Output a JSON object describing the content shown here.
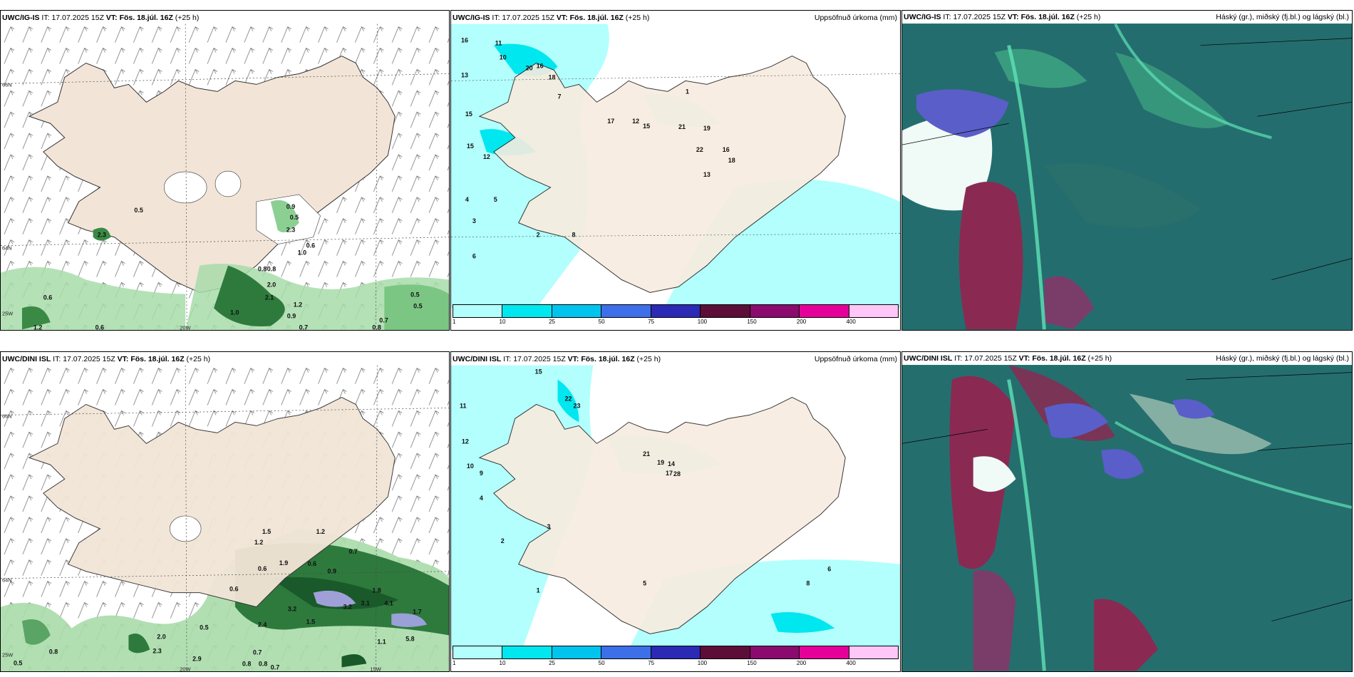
{
  "panels": {
    "tl": {
      "model": "UWC/IG-IS",
      "it_label": "IT:",
      "it": "17.07.2025 15Z",
      "vt": "VT: Fös. 18.júl. 16Z",
      "lead": "(+25 h)",
      "right": ""
    },
    "tm": {
      "model": "UWC/IG-IS",
      "it_label": "IT:",
      "it": "17.07.2025 15Z",
      "vt": "VT: Fös. 18.júl. 16Z",
      "lead": "(+25 h)",
      "right": "Uppsöfnuð úrkoma (mm)"
    },
    "tr": {
      "model": "UWC/IG-IS",
      "it_label": "IT:",
      "it": "17.07.2025 15Z",
      "vt": "VT: Fös. 18.júl. 16Z",
      "lead": "(+25 h)",
      "right": "Háský (gr.), miðský (fj.bl.) og lágský (bl.)"
    },
    "bl": {
      "model": "UWC/DINI ISL",
      "it_label": "IT:",
      "it": "17.07.2025 15Z",
      "vt": "VT: Fös. 18.júl. 16Z",
      "lead": "(+25 h)",
      "right": ""
    },
    "bm": {
      "model": "UWC/DINI ISL",
      "it_label": "IT:",
      "it": "17.07.2025 15Z",
      "vt": "VT: Fös. 18.júl. 16Z",
      "lead": "(+25 h)",
      "right": "Uppsöfnuð úrkoma (mm)"
    },
    "br": {
      "model": "UWC/DINI ISL",
      "it_label": "IT:",
      "it": "17.07.2025 15Z",
      "vt": "VT: Fös. 18.júl. 16Z",
      "lead": "(+25 h)",
      "right": "Háský (gr.), miðský (fj.bl.) og lágský (bl.)"
    }
  },
  "grid_labels": {
    "lat_66": "66N",
    "lat_64": "64N",
    "lon_25": "25W",
    "lon_20": "20W",
    "lon_15": "15W"
  },
  "colorbar": {
    "colors": [
      "#b2fffd",
      "#00e7f0",
      "#00c4ee",
      "#3d6fe8",
      "#2a2ab5",
      "#5c0d38",
      "#8a0a6e",
      "#e6009a",
      "#ffc7f7"
    ],
    "labels": [
      "1",
      "10",
      "25",
      "50",
      "75",
      "100",
      "150",
      "200",
      "400"
    ]
  },
  "top_rain_values": [
    "0.5",
    "0.9",
    "0.5",
    "2.3",
    "0.6",
    "1.0",
    "2.3",
    "0.8",
    "0.8",
    "2.0",
    "2.1",
    "1.2",
    "0.9",
    "1.0",
    "0.6",
    "1.2",
    "0.6",
    "0.5",
    "0.5",
    "0.7",
    "0.8",
    "0.7"
  ],
  "top_accum_values": [
    "16",
    "11",
    "13",
    "15",
    "15",
    "12",
    "20",
    "10",
    "16",
    "18",
    "7",
    "17",
    "12",
    "15",
    "21",
    "19",
    "22",
    "16",
    "18",
    "13",
    "5",
    "3",
    "2",
    "1",
    "4",
    "8",
    "6"
  ],
  "bottom_rain_values": [
    "1.5",
    "1.2",
    "1.2",
    "0.7",
    "0.6",
    "1.9",
    "0.6",
    "0.6",
    "0.9",
    "1.8",
    "4.1",
    "3.2",
    "3.2",
    "3.1",
    "2.4",
    "1.5",
    "1.7",
    "5.8",
    "1.1",
    "2.0",
    "2.3",
    "2.9",
    "0.5",
    "0.5",
    "0.8",
    "0.7",
    "0.8",
    "0.8",
    "0.7"
  ],
  "bottom_accum_values": [
    "15",
    "22",
    "23",
    "21",
    "19",
    "28",
    "14",
    "17",
    "11",
    "10",
    "12",
    "9",
    "6",
    "4",
    "3",
    "2",
    "1",
    "5",
    "8"
  ]
}
